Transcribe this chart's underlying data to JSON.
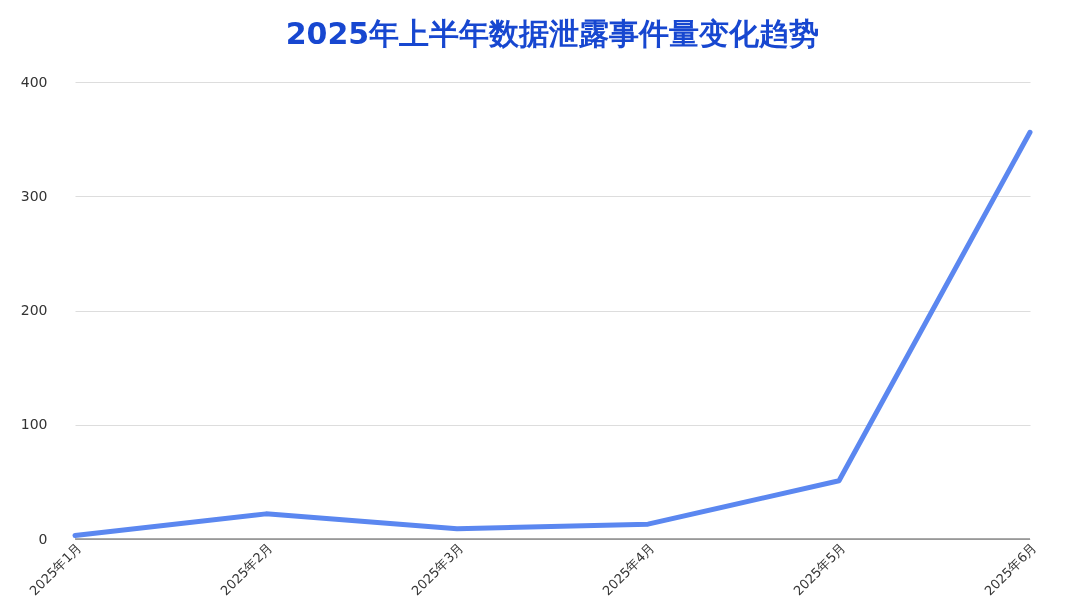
{
  "chart_data": {
    "type": "line",
    "title": "2025年上半年数据泄露事件量变化趋势",
    "categories": [
      "2025年1月",
      "2025年2月",
      "2025年3月",
      "2025年4月",
      "2025年5月",
      "2025年6月"
    ],
    "series": [
      {
        "color": "#5b87f0",
        "values": [
          3,
          22,
          9,
          13,
          51,
          356
        ]
      }
    ],
    "ylim": [
      0,
      400
    ],
    "yticks": [
      0,
      100,
      200,
      300,
      400
    ],
    "grid": "y",
    "legend": false,
    "marker": "none",
    "line_style": "solid"
  }
}
